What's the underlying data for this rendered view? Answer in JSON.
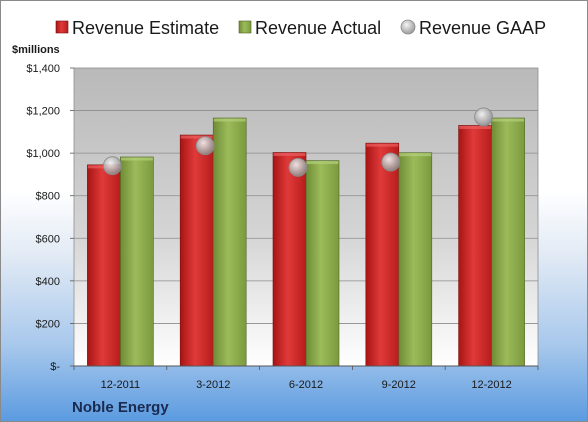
{
  "chart_data": {
    "type": "bar",
    "unit_label": "$millions",
    "company": "Noble Energy",
    "categories": [
      "12-2011",
      "3-2012",
      "6-2012",
      "9-2012",
      "12-2012"
    ],
    "series": [
      {
        "name": "Revenue Estimate",
        "kind": "bar",
        "color": "#d42a2a",
        "values": [
          945,
          1085,
          1003,
          1047,
          1130
        ]
      },
      {
        "name": "Revenue Actual",
        "kind": "bar",
        "color": "#8aaa4a",
        "values": [
          982,
          1165,
          965,
          1002,
          1165
        ]
      },
      {
        "name": "Revenue GAAP",
        "kind": "marker",
        "color": "#b4b4b4",
        "values": [
          941,
          1035,
          933,
          958,
          1170
        ]
      }
    ],
    "yticks": [
      {
        "value": 0,
        "label": "$-"
      },
      {
        "value": 200,
        "label": "$200"
      },
      {
        "value": 400,
        "label": "$400"
      },
      {
        "value": 600,
        "label": "$600"
      },
      {
        "value": 800,
        "label": "$800"
      },
      {
        "value": 1000,
        "label": "$1,000"
      },
      {
        "value": 1200,
        "label": "$1,200"
      },
      {
        "value": 1400,
        "label": "$1,400"
      }
    ],
    "ylim": [
      0,
      1400
    ],
    "grid": true,
    "legend_position": "top"
  }
}
